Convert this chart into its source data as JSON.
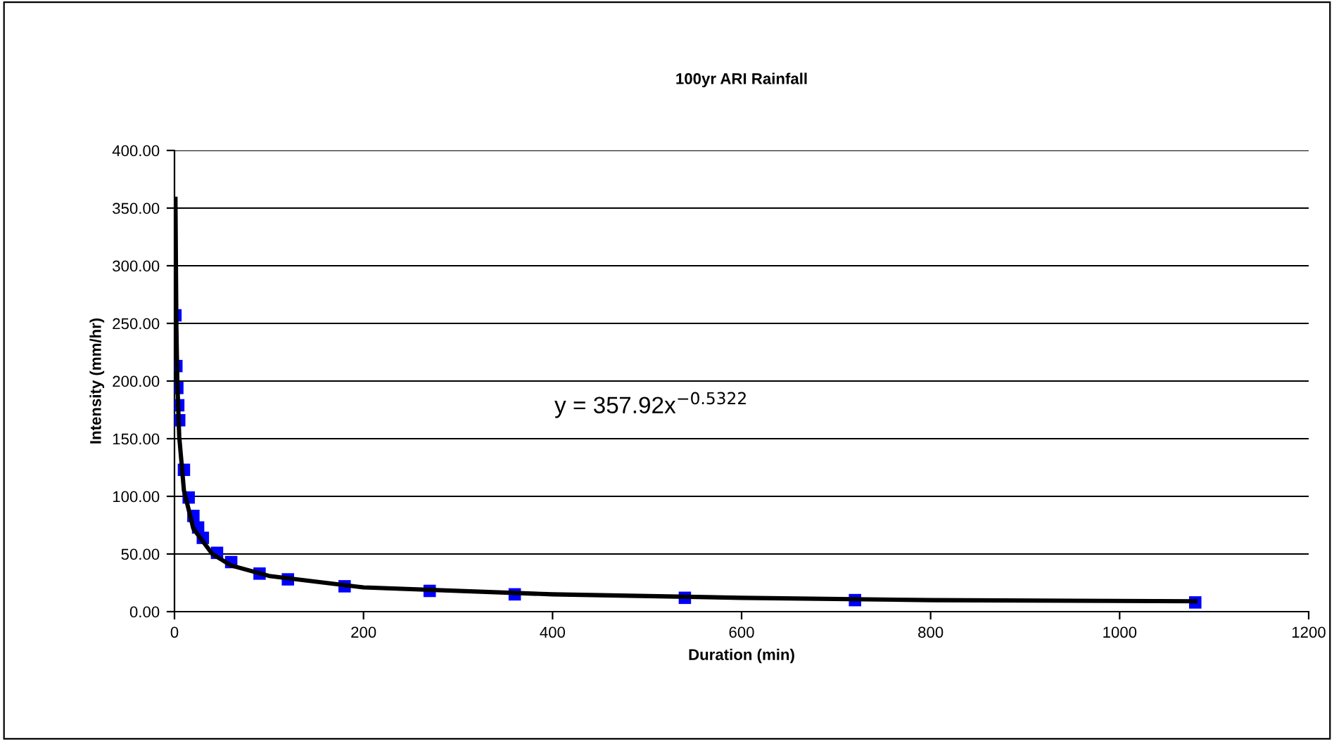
{
  "chart_data": {
    "type": "scatter",
    "title": "100yr ARI Rainfall",
    "xlabel": "Duration (min)",
    "ylabel": "Intensity (mm/hr)",
    "xlim": [
      0,
      1200
    ],
    "xticks": [
      0,
      200,
      400,
      600,
      800,
      1000,
      1200
    ],
    "ylim": [
      0,
      400
    ],
    "yticks": [
      {
        "value": 0,
        "label": "0.00"
      },
      {
        "value": 50,
        "label": "50.00"
      },
      {
        "value": 100,
        "label": "100.00"
      },
      {
        "value": 150,
        "label": "150.00"
      },
      {
        "value": 200,
        "label": "200.00"
      },
      {
        "value": 250,
        "label": "250.00"
      },
      {
        "value": 300,
        "label": "300.00"
      },
      {
        "value": 350,
        "label": "350.00"
      },
      {
        "value": 400,
        "label": "400.00"
      }
    ],
    "grid": "y",
    "legend": false,
    "marker": "square",
    "annotations": [
      "y = 357.92x$^{−0.5322}$"
    ],
    "series": [
      {
        "color": "#0000ff",
        "x": [
          1,
          2,
          3,
          4,
          5,
          10,
          15,
          20,
          25,
          30,
          45,
          60,
          90,
          120,
          180,
          270,
          360,
          540,
          720,
          1080
        ],
        "values": [
          257,
          213,
          194,
          179,
          166,
          123,
          99,
          83,
          73,
          64,
          51,
          43,
          33,
          28,
          22,
          18,
          15,
          12,
          10,
          8
        ]
      },
      {
        "type": "line",
        "color": "#000000",
        "marker": "none",
        "x": [
          1,
          2,
          3,
          5,
          10,
          20,
          40,
          60,
          100,
          200,
          400,
          600,
          800,
          1080
        ],
        "values": [
          358,
          247,
          199,
          152,
          105,
          72,
          50,
          40,
          31,
          21,
          15,
          12,
          10,
          9
        ]
      }
    ]
  }
}
